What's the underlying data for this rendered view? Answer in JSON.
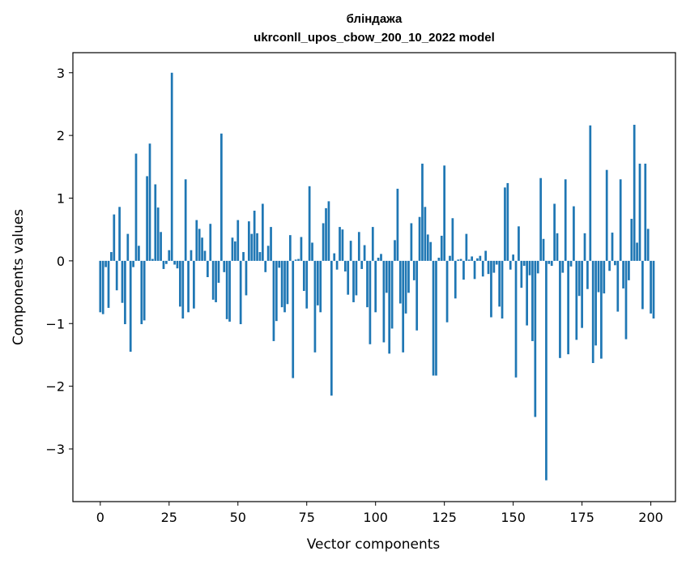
{
  "chart_data": {
    "type": "bar",
    "title_line1": "блiндажа",
    "title_line2": "ukrconll_upos_cbow_200_10_2022 model",
    "xlabel": "Vector components",
    "ylabel": "Components values",
    "xlim": [
      -9.95,
      208.95
    ],
    "ylim": [
      -3.84,
      3.32
    ],
    "xticks": [
      0,
      25,
      50,
      75,
      100,
      125,
      150,
      175,
      200
    ],
    "yticks": [
      -3,
      -2,
      -1,
      0,
      1,
      2,
      3
    ],
    "bar_color": "#1f77b4",
    "grid": false,
    "values": [
      -0.82,
      -0.85,
      -0.1,
      -0.75,
      0.14,
      0.74,
      -0.47,
      0.86,
      -0.67,
      -1.01,
      0.43,
      -1.45,
      -0.1,
      1.71,
      0.24,
      -1.01,
      -0.95,
      1.35,
      1.87,
      0.03,
      1.22,
      0.85,
      0.46,
      -0.13,
      -0.05,
      0.17,
      3.0,
      -0.06,
      -0.12,
      -0.73,
      -0.92,
      1.3,
      -0.82,
      0.17,
      -0.76,
      0.65,
      0.51,
      0.37,
      0.16,
      -0.26,
      0.59,
      -0.62,
      -0.66,
      -0.35,
      2.03,
      -0.18,
      -0.93,
      -0.97,
      0.37,
      0.31,
      0.65,
      -1.01,
      0.14,
      -0.55,
      0.63,
      0.43,
      0.8,
      0.44,
      0.14,
      0.91,
      -0.18,
      0.24,
      0.54,
      -1.28,
      -0.96,
      -0.11,
      -0.74,
      -0.82,
      -0.69,
      0.41,
      -1.87,
      0.02,
      0.03,
      0.38,
      -0.48,
      -0.76,
      1.19,
      0.29,
      -1.46,
      -0.71,
      -0.82,
      0.6,
      0.84,
      0.95,
      -2.15,
      0.12,
      -0.14,
      0.54,
      0.5,
      -0.17,
      -0.54,
      0.32,
      -0.66,
      -0.55,
      0.46,
      -0.13,
      0.25,
      -0.74,
      -1.33,
      0.54,
      -0.82,
      0.05,
      0.11,
      -1.3,
      -0.51,
      -1.48,
      -1.08,
      0.33,
      1.15,
      -0.68,
      -1.46,
      -0.84,
      -0.51,
      0.6,
      -0.31,
      -1.11,
      0.7,
      1.55,
      0.86,
      0.42,
      0.3,
      -1.83,
      -1.83,
      0.05,
      0.4,
      1.52,
      -0.98,
      0.08,
      0.68,
      -0.6,
      0.02,
      0.03,
      -0.3,
      0.43,
      0.02,
      0.07,
      -0.29,
      0.04,
      0.08,
      -0.25,
      0.16,
      -0.21,
      -0.9,
      -0.19,
      -0.06,
      -0.73,
      -0.92,
      1.17,
      1.24,
      -0.14,
      0.1,
      -1.86,
      0.55,
      -0.43,
      -0.08,
      -1.03,
      -0.23,
      -1.28,
      -2.49,
      -0.2,
      1.32,
      0.35,
      -3.5,
      -0.05,
      -0.08,
      0.91,
      0.44,
      -1.55,
      -0.19,
      1.3,
      -1.49,
      -0.09,
      0.87,
      -1.26,
      -0.56,
      -1.07,
      0.44,
      -0.45,
      2.16,
      -1.63,
      -1.35,
      -0.5,
      -1.56,
      -0.52,
      1.45,
      -0.16,
      0.45,
      -0.07,
      -0.81,
      1.3,
      -0.44,
      -1.25,
      -0.31,
      0.67,
      2.17,
      0.29,
      1.55,
      -0.77,
      1.55,
      0.51,
      -0.84,
      -0.92
    ]
  }
}
